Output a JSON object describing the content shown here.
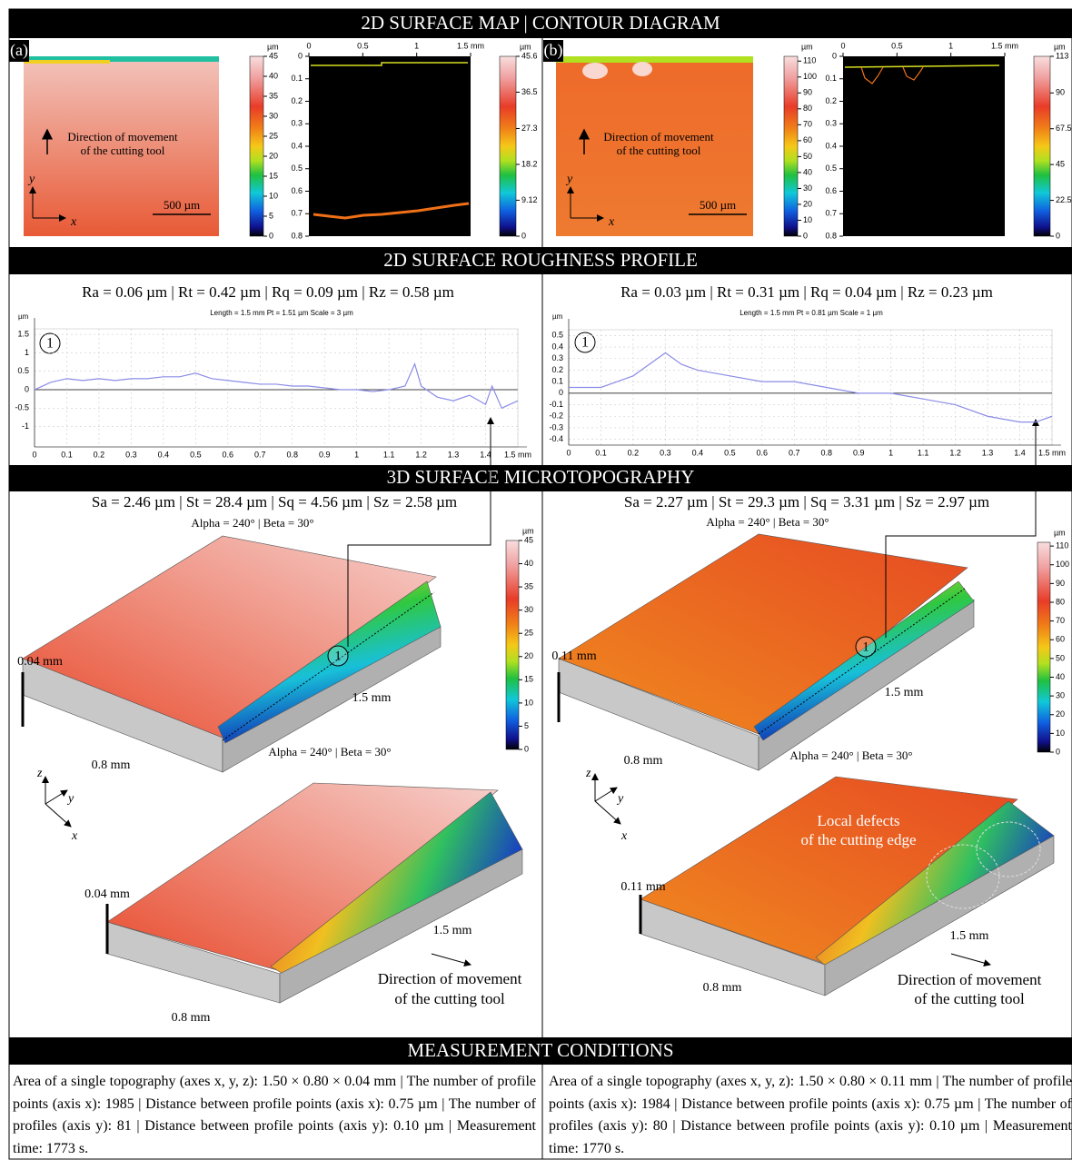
{
  "sections": [
    "2D SURFACE MAP | CONTOUR DIAGRAM",
    "2D SURFACE ROUGHNESS PROFILE",
    "3D SURFACE MICROTOPOGRAPHY",
    "MEASUREMENT CONDITIONS"
  ],
  "panels": [
    {
      "label": "(a)",
      "map": {
        "direction": [
          "Direction of movement",
          "of the cutting tool"
        ],
        "scale": "500 µm",
        "axes": [
          "y",
          "x"
        ],
        "colorbar": {
          "unit": "µm",
          "lim": [
            0,
            45
          ],
          "ticks": [
            45,
            40,
            35,
            30,
            25,
            20,
            15,
            10,
            5,
            0
          ]
        }
      },
      "contour": {
        "xlim": [
          0,
          1.5
        ],
        "xticks": [
          0,
          0.5,
          1,
          {
            "value": 1.5,
            "label": "1.5 mm"
          }
        ],
        "ylim": [
          0,
          0.8
        ],
        "yticks": [
          0,
          0.1,
          0.2,
          0.3,
          0.4,
          0.5,
          0.6,
          0.7,
          0.8
        ],
        "colorbar": {
          "unit": "µm",
          "lim": [
            0,
            45.6
          ],
          "ticks": [
            45.6,
            36.5,
            27.3,
            18.2,
            9.12,
            0
          ]
        }
      },
      "profile": {
        "parameters": "Ra = 0.06 µm | Rt = 0.42 µm | Rq = 0.09 µm | Rz = 0.58 µm",
        "info": "Length = 1.5 mm  Pt = 1.51 µm  Scale = 3 µm",
        "unit": "µm",
        "marker": "1",
        "xlim": [
          0,
          1.5
        ],
        "xticks": [
          0,
          0.1,
          0.2,
          0.3,
          0.4,
          0.5,
          0.6,
          0.7,
          0.8,
          0.9,
          1,
          1.1,
          1.2,
          1.3,
          1.4,
          {
            "value": 1.5,
            "label": "1.5 mm"
          }
        ],
        "ylim": [
          -1.55,
          1.65
        ],
        "yticks": [
          1.5,
          1,
          0.5,
          0,
          -0.5,
          -1
        ],
        "color": "#8c8ce8",
        "x": [
          0,
          0.05,
          0.1,
          0.15,
          0.2,
          0.25,
          0.3,
          0.35,
          0.4,
          0.45,
          0.5,
          0.55,
          0.6,
          0.65,
          0.7,
          0.75,
          0.8,
          0.85,
          0.9,
          0.95,
          1.0,
          1.05,
          1.1,
          1.15,
          1.18,
          1.2,
          1.25,
          1.3,
          1.35,
          1.4,
          1.42,
          1.45,
          1.5
        ],
        "values": [
          0,
          0.2,
          0.3,
          0.25,
          0.3,
          0.25,
          0.3,
          0.3,
          0.35,
          0.35,
          0.45,
          0.3,
          0.25,
          0.2,
          0.15,
          0.15,
          0.1,
          0.1,
          0.05,
          0,
          0,
          -0.05,
          0,
          0.1,
          0.7,
          0.1,
          -0.2,
          -0.3,
          -0.15,
          -0.4,
          0.1,
          -0.5,
          -0.3
        ]
      },
      "topography": {
        "parameters": "Sa = 2.46 µm | St = 28.4 µm | Sq = 4.56 µm | Sz = 2.58 µm",
        "view": "Alpha = 240° | Beta = 30°",
        "height": "0.04 mm",
        "length": "1.5 mm",
        "width": "0.8 mm",
        "marker": "1",
        "colorbar": {
          "unit": "µm",
          "lim": [
            0,
            45
          ],
          "ticks": [
            45,
            40,
            35,
            30,
            25,
            20,
            15,
            10,
            5,
            0
          ]
        },
        "view2": "Alpha = 240° | Beta = 30°",
        "axes": [
          "z",
          "y",
          "x"
        ],
        "height2": "0.04 mm",
        "length2": "1.5 mm",
        "width2": "0.8 mm",
        "direction": [
          "Direction of movement",
          "of the cutting tool"
        ]
      },
      "conditions": "Area of a single topography (axes x, y, z): 1.50 × 0.80 × 0.04 mm | The number of profile points (axis x): 1985 | Distance between profile points (axis x): 0.75 µm | The number of profiles (axis y): 81 | Distance between profile points (axis y): 0.10 µm | Measurement time: 1773 s."
    },
    {
      "label": "(b)",
      "map": {
        "direction": [
          "Direction of movement",
          "of the cutting tool"
        ],
        "scale": "500 µm",
        "axes": [
          "y",
          "x"
        ],
        "colorbar": {
          "unit": "µm",
          "lim": [
            0,
            113
          ],
          "ticks": [
            110,
            100,
            90,
            80,
            70,
            60,
            50,
            40,
            30,
            20,
            10,
            0
          ]
        }
      },
      "contour": {
        "xlim": [
          0,
          1.5
        ],
        "xticks": [
          0,
          0.5,
          1,
          {
            "value": 1.5,
            "label": "1.5 mm"
          }
        ],
        "ylim": [
          0,
          0.8
        ],
        "yticks": [
          0,
          0.1,
          0.2,
          0.3,
          0.4,
          0.5,
          0.6,
          0.7,
          0.8
        ],
        "colorbar": {
          "unit": "µm",
          "lim": [
            0,
            113
          ],
          "ticks": [
            113,
            90,
            67.5,
            45,
            22.5,
            0
          ]
        }
      },
      "profile": {
        "parameters": "Ra = 0.03 µm | Rt = 0.31 µm | Rq = 0.04 µm | Rz = 0.23 µm",
        "info": "Length = 1.5 mm  Pt = 0.81 µm  Scale = 1 µm",
        "unit": "µm",
        "marker": "1",
        "xlim": [
          0,
          1.5
        ],
        "xticks": [
          0,
          0.1,
          0.2,
          0.3,
          0.4,
          0.5,
          0.6,
          0.7,
          0.8,
          0.9,
          1,
          1.1,
          1.2,
          1.3,
          1.4,
          {
            "value": 1.5,
            "label": "1.5 mm"
          }
        ],
        "ylim": [
          -0.45,
          0.55
        ],
        "yticks": [
          0.5,
          0.4,
          0.3,
          0.2,
          0.1,
          0,
          -0.1,
          -0.2,
          -0.3,
          -0.4
        ],
        "color": "#8c8ce8",
        "x": [
          0,
          0.1,
          0.15,
          0.2,
          0.25,
          0.3,
          0.35,
          0.4,
          0.5,
          0.6,
          0.7,
          0.8,
          0.9,
          1.0,
          1.1,
          1.2,
          1.3,
          1.4,
          1.45,
          1.5
        ],
        "values": [
          0.05,
          0.05,
          0.1,
          0.15,
          0.25,
          0.35,
          0.25,
          0.2,
          0.15,
          0.1,
          0.1,
          0.05,
          0,
          0,
          -0.05,
          -0.1,
          -0.2,
          -0.25,
          -0.25,
          -0.2
        ]
      },
      "topography": {
        "parameters": "Sa = 2.27 µm | St = 29.3 µm | Sq = 3.31 µm | Sz = 2.97 µm",
        "view": "Alpha = 240° | Beta = 30°",
        "height": "0.11 mm",
        "length": "1.5 mm",
        "width": "0.8 mm",
        "marker": "1",
        "colorbar": {
          "unit": "µm",
          "lim": [
            0,
            112
          ],
          "ticks": [
            110,
            100,
            90,
            80,
            70,
            60,
            50,
            40,
            30,
            20,
            10,
            0
          ]
        },
        "view2": "Alpha = 240° | Beta = 30°",
        "axes": [
          "z",
          "y",
          "x"
        ],
        "height2": "0.11 mm",
        "length2": "1.5 mm",
        "width2": "0.8 mm",
        "direction": [
          "Direction of movement",
          "of the cutting tool"
        ],
        "defects": [
          "Local defects",
          "of the cutting edge"
        ]
      },
      "conditions": "Area of a single topography (axes x, y, z): 1.50 × 0.80 × 0.11 mm | The number of profile points (axis x): 1984 | Distance between profile points (axis x): 0.75 µm | The number of profiles (axis y): 80 | Distance between profile points (axis y): 0.10 µm | Measurement time: 1770 s."
    }
  ]
}
